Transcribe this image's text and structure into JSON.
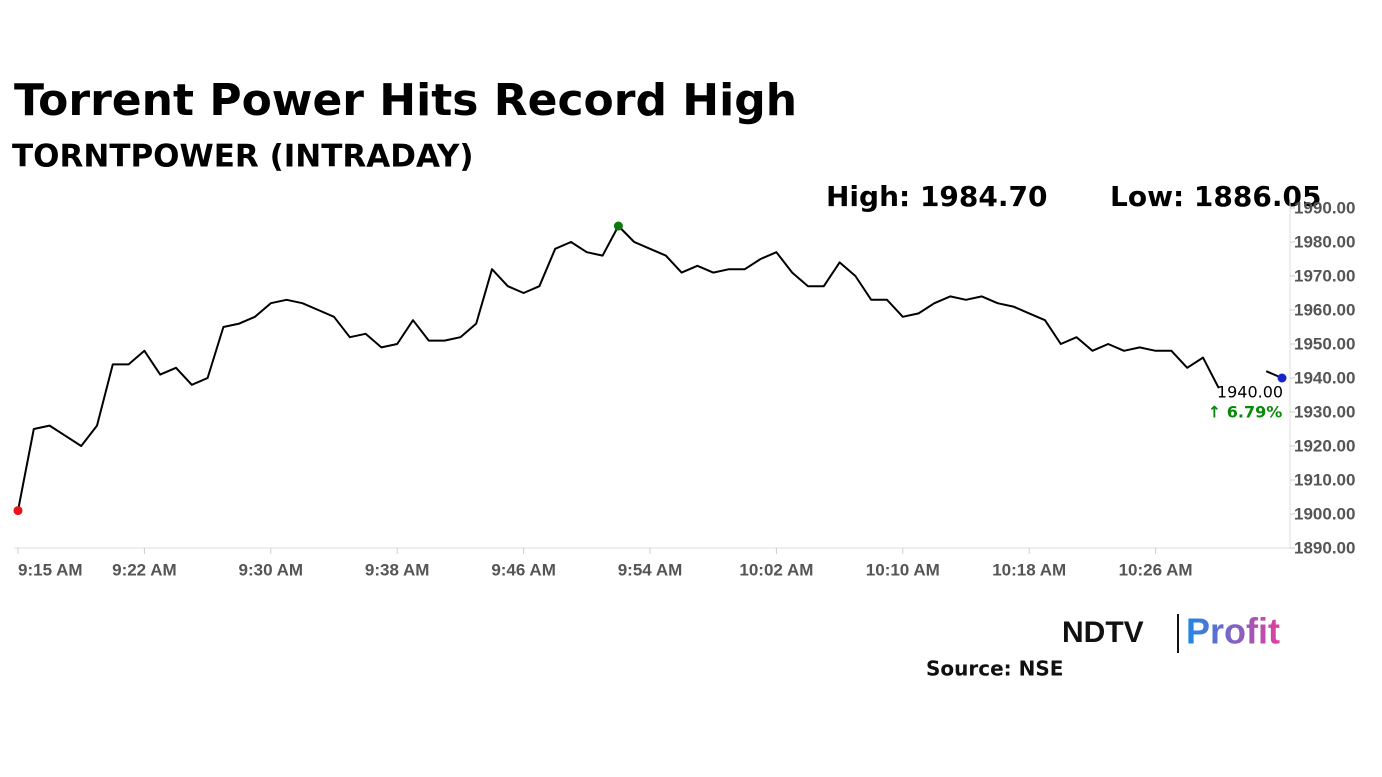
{
  "chart_data": {
    "type": "line",
    "title": "Torrent Power Hits Record High",
    "subtitle": "TORNTPOWER (INTRADAY)",
    "annotations": {
      "high": "High: 1984.70",
      "low": "Low: 1886.05",
      "last": "1940.00",
      "change": "↑ 6.79%"
    },
    "source": "Source: NSE",
    "logo": {
      "left": "NDTV",
      "right": "Profit"
    },
    "categories": [
      "9:15 AM",
      null,
      null,
      null,
      null,
      null,
      null,
      null,
      "9:22 AM",
      null,
      null,
      null,
      null,
      null,
      null,
      null,
      "9:30 AM",
      null,
      null,
      null,
      null,
      null,
      null,
      null,
      "9:38 AM",
      null,
      null,
      null,
      null,
      null,
      null,
      null,
      "9:46 AM",
      null,
      null,
      null,
      null,
      null,
      null,
      null,
      "9:54 AM",
      null,
      null,
      null,
      null,
      null,
      null,
      null,
      "10:02 AM",
      null,
      null,
      null,
      null,
      null,
      null,
      null,
      "10:10 AM",
      null,
      null,
      null,
      null,
      null,
      null,
      null,
      "10:18 AM",
      null,
      null,
      null,
      null,
      null,
      null,
      null,
      "10:26 AM",
      null,
      null,
      null,
      null,
      null,
      null,
      null,
      null
    ],
    "series": [
      {
        "name": "TORNTPOWER",
        "color": "#000000",
        "values": [
          1901,
          1925,
          1926,
          1923,
          1920,
          1926,
          1944,
          1944,
          1948,
          1941,
          1943,
          1938,
          1940,
          1955,
          1956,
          1958,
          1962,
          1963,
          1962,
          1960,
          1958,
          1952,
          1953,
          1949,
          1950,
          1957,
          1951,
          1951,
          1952,
          1956,
          1972,
          1967,
          1965,
          1967,
          1978,
          1980,
          1977,
          1976,
          1984.7,
          1980,
          1978,
          1976,
          1971,
          1973,
          1971,
          1972,
          1972,
          1975,
          1977,
          1971,
          1967,
          1967,
          1974,
          1970,
          1963,
          1963,
          1958,
          1959,
          1962,
          1964,
          1963,
          1964,
          1962,
          1961,
          1959,
          1957,
          1950,
          1952,
          1948,
          1950,
          1948,
          1949,
          1948,
          1948,
          1943,
          1946,
          1937,
          null,
          null,
          1942,
          1940
        ]
      }
    ],
    "marker_colors": {
      "low": "#e8131b",
      "high": "#0a7a0a",
      "last": "#1626c8"
    },
    "change_color": "#0a8a0a",
    "ylim": [
      1890,
      1990
    ],
    "yticks": [
      {
        "value": 1890,
        "label": "1890.00"
      },
      {
        "value": 1900,
        "label": "1900.00"
      },
      {
        "value": 1910,
        "label": "1910.00"
      },
      {
        "value": 1920,
        "label": "1920.00"
      },
      {
        "value": 1930,
        "label": "1930.00"
      },
      {
        "value": 1940,
        "label": "1940.00"
      },
      {
        "value": 1950,
        "label": "1950.00"
      },
      {
        "value": 1960,
        "label": "1960.00"
      },
      {
        "value": 1970,
        "label": "1970.00"
      },
      {
        "value": 1980,
        "label": "1980.00"
      },
      {
        "value": 1990,
        "label": "1990.00"
      }
    ]
  }
}
